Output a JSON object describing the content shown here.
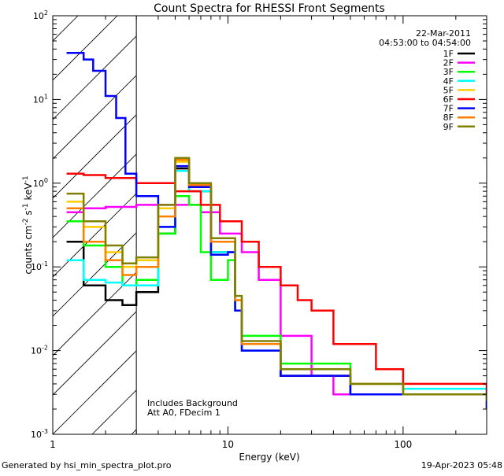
{
  "chart_data": {
    "type": "line",
    "title": "Count Spectra for RHESSI Front Segments",
    "xlabel": "Energy (keV)",
    "ylabel_main": "counts cm",
    "ylabel_sup1": "-2",
    "ylabel_s": " s",
    "ylabel_sup2": "-1",
    "ylabel_kev": " keV",
    "ylabel_sup3": "-1",
    "xscale": "log",
    "yscale": "log",
    "xlim": [
      1,
      300
    ],
    "ylim": [
      0.001,
      100
    ],
    "x_ticks": [
      {
        "value": 1,
        "label": "1"
      },
      {
        "value": 10,
        "label": "10"
      },
      {
        "value": 100,
        "label": "100"
      }
    ],
    "y_ticks": [
      {
        "value": 0.001,
        "base": "10",
        "exp": "-3"
      },
      {
        "value": 0.01,
        "base": "10",
        "exp": "-2"
      },
      {
        "value": 0.1,
        "base": "10",
        "exp": "-1"
      },
      {
        "value": 1,
        "base": "10",
        "exp": "0"
      },
      {
        "value": 10,
        "base": "10",
        "exp": "1"
      },
      {
        "value": 100,
        "base": "10",
        "exp": "2"
      }
    ],
    "date": "22-Mar-2011",
    "time_range": "04:53:00 to 04:54:00",
    "hatched_region": [
      1,
      3
    ],
    "annotations": [
      "Includes Background",
      "Att A0, FDecim 1"
    ],
    "legend_position": "top-right",
    "series": [
      {
        "name": "1F",
        "color": "#000000",
        "points": [
          [
            1.2,
            0.2
          ],
          [
            1.5,
            0.06
          ],
          [
            2,
            0.04
          ],
          [
            2.5,
            0.035
          ],
          [
            3,
            0.05
          ],
          [
            4,
            0.25
          ],
          [
            5,
            1.5
          ],
          [
            6,
            0.8
          ],
          [
            8,
            0.15
          ],
          [
            10,
            0.15
          ],
          [
            11,
            0.03
          ],
          [
            12,
            0.012
          ],
          [
            20,
            0.005
          ],
          [
            50,
            0.003
          ],
          [
            100,
            0.003
          ],
          [
            300,
            0.002
          ]
        ]
      },
      {
        "name": "2F",
        "color": "#ff00ff",
        "points": [
          [
            1.2,
            0.45
          ],
          [
            1.5,
            0.5
          ],
          [
            2,
            0.52
          ],
          [
            3,
            0.55
          ],
          [
            5,
            0.55
          ],
          [
            7,
            0.45
          ],
          [
            9,
            0.25
          ],
          [
            12,
            0.15
          ],
          [
            15,
            0.07
          ],
          [
            20,
            0.015
          ],
          [
            30,
            0.005
          ],
          [
            40,
            0.003
          ],
          [
            70,
            0.003
          ],
          [
            100,
            0.003
          ],
          [
            300,
            0.0025
          ]
        ]
      },
      {
        "name": "3F",
        "color": "#00ff00",
        "points": [
          [
            1.2,
            0.35
          ],
          [
            1.5,
            0.18
          ],
          [
            2,
            0.1
          ],
          [
            2.5,
            0.06
          ],
          [
            3,
            0.07
          ],
          [
            4,
            0.25
          ],
          [
            5,
            0.7
          ],
          [
            6,
            0.55
          ],
          [
            7,
            0.15
          ],
          [
            8,
            0.07
          ],
          [
            10,
            0.12
          ],
          [
            11,
            0.03
          ],
          [
            12,
            0.015
          ],
          [
            20,
            0.007
          ],
          [
            50,
            0.004
          ],
          [
            100,
            0.003
          ],
          [
            300,
            0.0025
          ]
        ]
      },
      {
        "name": "4F",
        "color": "#00ffff",
        "points": [
          [
            1.2,
            0.12
          ],
          [
            1.5,
            0.07
          ],
          [
            2,
            0.065
          ],
          [
            2.5,
            0.06
          ],
          [
            3,
            0.06
          ],
          [
            4,
            0.3
          ],
          [
            5,
            1.4
          ],
          [
            6,
            0.8
          ],
          [
            8,
            0.15
          ],
          [
            10,
            0.15
          ],
          [
            11,
            0.03
          ],
          [
            12,
            0.01
          ],
          [
            20,
            0.006
          ],
          [
            50,
            0.004
          ],
          [
            100,
            0.0035
          ],
          [
            300,
            0.002
          ]
        ]
      },
      {
        "name": "5F",
        "color": "#ffcc00",
        "points": [
          [
            1.2,
            0.6
          ],
          [
            1.5,
            0.3
          ],
          [
            2,
            0.15
          ],
          [
            2.5,
            0.1
          ],
          [
            3,
            0.12
          ],
          [
            4,
            0.5
          ],
          [
            5,
            1.8
          ],
          [
            6,
            0.9
          ],
          [
            8,
            0.2
          ],
          [
            10,
            0.2
          ],
          [
            11,
            0.04
          ],
          [
            12,
            0.012
          ],
          [
            20,
            0.006
          ],
          [
            50,
            0.004
          ],
          [
            100,
            0.003
          ],
          [
            300,
            0.0025
          ]
        ]
      },
      {
        "name": "6F",
        "color": "#ff0000",
        "points": [
          [
            1.2,
            1.3
          ],
          [
            1.5,
            1.25
          ],
          [
            2,
            1.15
          ],
          [
            3,
            1.0
          ],
          [
            5,
            0.8
          ],
          [
            7,
            0.55
          ],
          [
            9,
            0.35
          ],
          [
            12,
            0.2
          ],
          [
            15,
            0.1
          ],
          [
            20,
            0.06
          ],
          [
            25,
            0.04
          ],
          [
            30,
            0.03
          ],
          [
            40,
            0.012
          ],
          [
            70,
            0.006
          ],
          [
            100,
            0.004
          ],
          [
            300,
            0.003
          ]
        ]
      },
      {
        "name": "7F",
        "color": "#0000ff",
        "points": [
          [
            1.2,
            36
          ],
          [
            1.5,
            30
          ],
          [
            1.7,
            22
          ],
          [
            2,
            11
          ],
          [
            2.3,
            6
          ],
          [
            2.6,
            1.3
          ],
          [
            3,
            0.7
          ],
          [
            4,
            0.3
          ],
          [
            5,
            1.6
          ],
          [
            6,
            0.9
          ],
          [
            8,
            0.14
          ],
          [
            10,
            0.15
          ],
          [
            11,
            0.03
          ],
          [
            12,
            0.01
          ],
          [
            20,
            0.005
          ],
          [
            50,
            0.003
          ],
          [
            100,
            0.003
          ],
          [
            300,
            0.002
          ]
        ]
      },
      {
        "name": "8F",
        "color": "#ff8000",
        "points": [
          [
            1.2,
            0.5
          ],
          [
            1.5,
            0.2
          ],
          [
            2,
            0.12
          ],
          [
            2.5,
            0.08
          ],
          [
            3,
            0.1
          ],
          [
            4,
            0.4
          ],
          [
            5,
            1.9
          ],
          [
            6,
            0.95
          ],
          [
            8,
            0.2
          ],
          [
            10,
            0.2
          ],
          [
            11,
            0.04
          ],
          [
            12,
            0.012
          ],
          [
            20,
            0.006
          ],
          [
            50,
            0.004
          ],
          [
            100,
            0.003
          ],
          [
            300,
            0.0025
          ]
        ]
      },
      {
        "name": "9F",
        "color": "#808000",
        "points": [
          [
            1.2,
            0.75
          ],
          [
            1.5,
            0.35
          ],
          [
            2,
            0.18
          ],
          [
            2.5,
            0.11
          ],
          [
            3,
            0.13
          ],
          [
            4,
            0.55
          ],
          [
            5,
            2.0
          ],
          [
            6,
            1.0
          ],
          [
            8,
            0.22
          ],
          [
            10,
            0.22
          ],
          [
            11,
            0.045
          ],
          [
            12,
            0.013
          ],
          [
            20,
            0.006
          ],
          [
            50,
            0.004
          ],
          [
            100,
            0.003
          ],
          [
            300,
            0.0025
          ]
        ]
      }
    ]
  },
  "footer": {
    "left": "Generated by hsi_min_spectra_plot.pro",
    "right": "19-Apr-2023 05:48"
  }
}
